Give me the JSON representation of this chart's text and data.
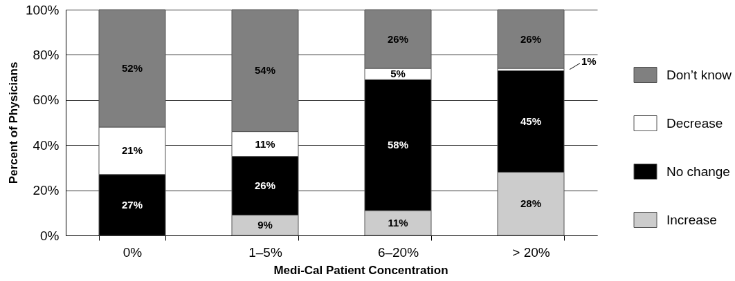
{
  "chart_data": {
    "type": "bar",
    "stacked": true,
    "xlabel": "Medi-Cal Patient Concentration",
    "ylabel": "Percent of Physicians",
    "categories": [
      "0%",
      "1–5%",
      "6–20%",
      "> 20%"
    ],
    "series": [
      {
        "name": "Increase",
        "color": "#cccccc",
        "values": [
          null,
          9,
          11,
          28
        ],
        "value_labels": [
          null,
          "9%",
          "11%",
          "28%"
        ]
      },
      {
        "name": "No change",
        "color": "#000000",
        "values": [
          27,
          26,
          58,
          45
        ],
        "value_labels": [
          "27%",
          "26%",
          "58%",
          "45%"
        ]
      },
      {
        "name": "Decrease",
        "color": "#ffffff",
        "values": [
          21,
          11,
          5,
          1
        ],
        "value_labels": [
          "21%",
          "11%",
          "5%",
          "1%"
        ]
      },
      {
        "name": "Don’t know",
        "color": "#808080",
        "values": [
          52,
          54,
          26,
          26
        ],
        "value_labels": [
          "52%",
          "54%",
          "26%",
          "26%"
        ]
      }
    ],
    "ylim": [
      0,
      100
    ],
    "yticks": [
      {
        "value": 0,
        "label": "0%"
      },
      {
        "value": 20,
        "label": "20%"
      },
      {
        "value": 40,
        "label": "40%"
      },
      {
        "value": 60,
        "label": "60%"
      },
      {
        "value": 80,
        "label": "80%"
      },
      {
        "value": 100,
        "label": "100%"
      }
    ],
    "grid": "y",
    "legend": "right"
  }
}
